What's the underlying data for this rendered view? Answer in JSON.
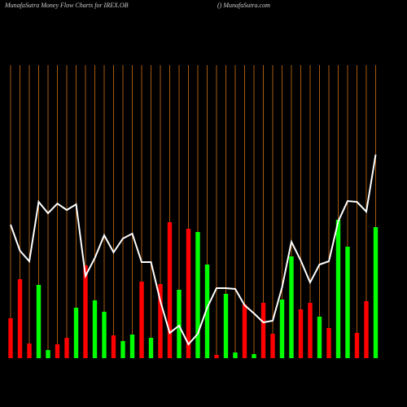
{
  "chart_data": {
    "type": "bar",
    "title": "MunafaSutra  Money Flow  Charts for IREX.OB",
    "subtitle": "() MunafaSutra.com",
    "ylim": [
      0,
      360
    ],
    "grid_color": "#a65a10",
    "values": [
      49,
      97,
      18,
      90,
      10,
      17,
      25,
      62,
      114,
      71,
      57,
      28,
      21,
      29,
      94,
      25,
      91,
      167,
      84,
      159,
      155,
      115,
      4,
      79,
      7,
      66,
      5,
      68,
      30,
      72,
      125,
      60,
      68,
      51,
      37,
      170,
      137,
      31,
      70,
      161
    ],
    "colors": [
      "#ff0000",
      "#ff0000",
      "#ff0000",
      "#00ff00",
      "#00ff00",
      "#ff0000",
      "#ff0000",
      "#00ff00",
      "#ff0000",
      "#00ff00",
      "#00ff00",
      "#ff0000",
      "#00ff00",
      "#00ff00",
      "#ff0000",
      "#00ff00",
      "#ff0000",
      "#ff0000",
      "#00ff00",
      "#ff0000",
      "#00ff00",
      "#00ff00",
      "#ff0000",
      "#00ff00",
      "#00ff00",
      "#ff0000",
      "#00ff00",
      "#ff0000",
      "#ff0000",
      "#00ff00",
      "#00ff00",
      "#ff0000",
      "#ff0000",
      "#00ff00",
      "#ff0000",
      "#00ff00",
      "#00ff00",
      "#ff0000",
      "#ff0000",
      "#00ff00"
    ],
    "line": {
      "color": "#ffffff",
      "values": [
        164,
        132,
        119,
        192,
        178,
        190,
        182,
        189,
        101,
        123,
        151,
        130,
        147,
        153,
        118,
        118,
        70,
        31,
        40,
        17,
        30,
        62,
        86,
        86,
        85,
        65,
        55,
        44,
        46,
        87,
        143,
        120,
        93,
        115,
        119,
        168,
        193,
        192,
        180,
        250
      ]
    }
  }
}
